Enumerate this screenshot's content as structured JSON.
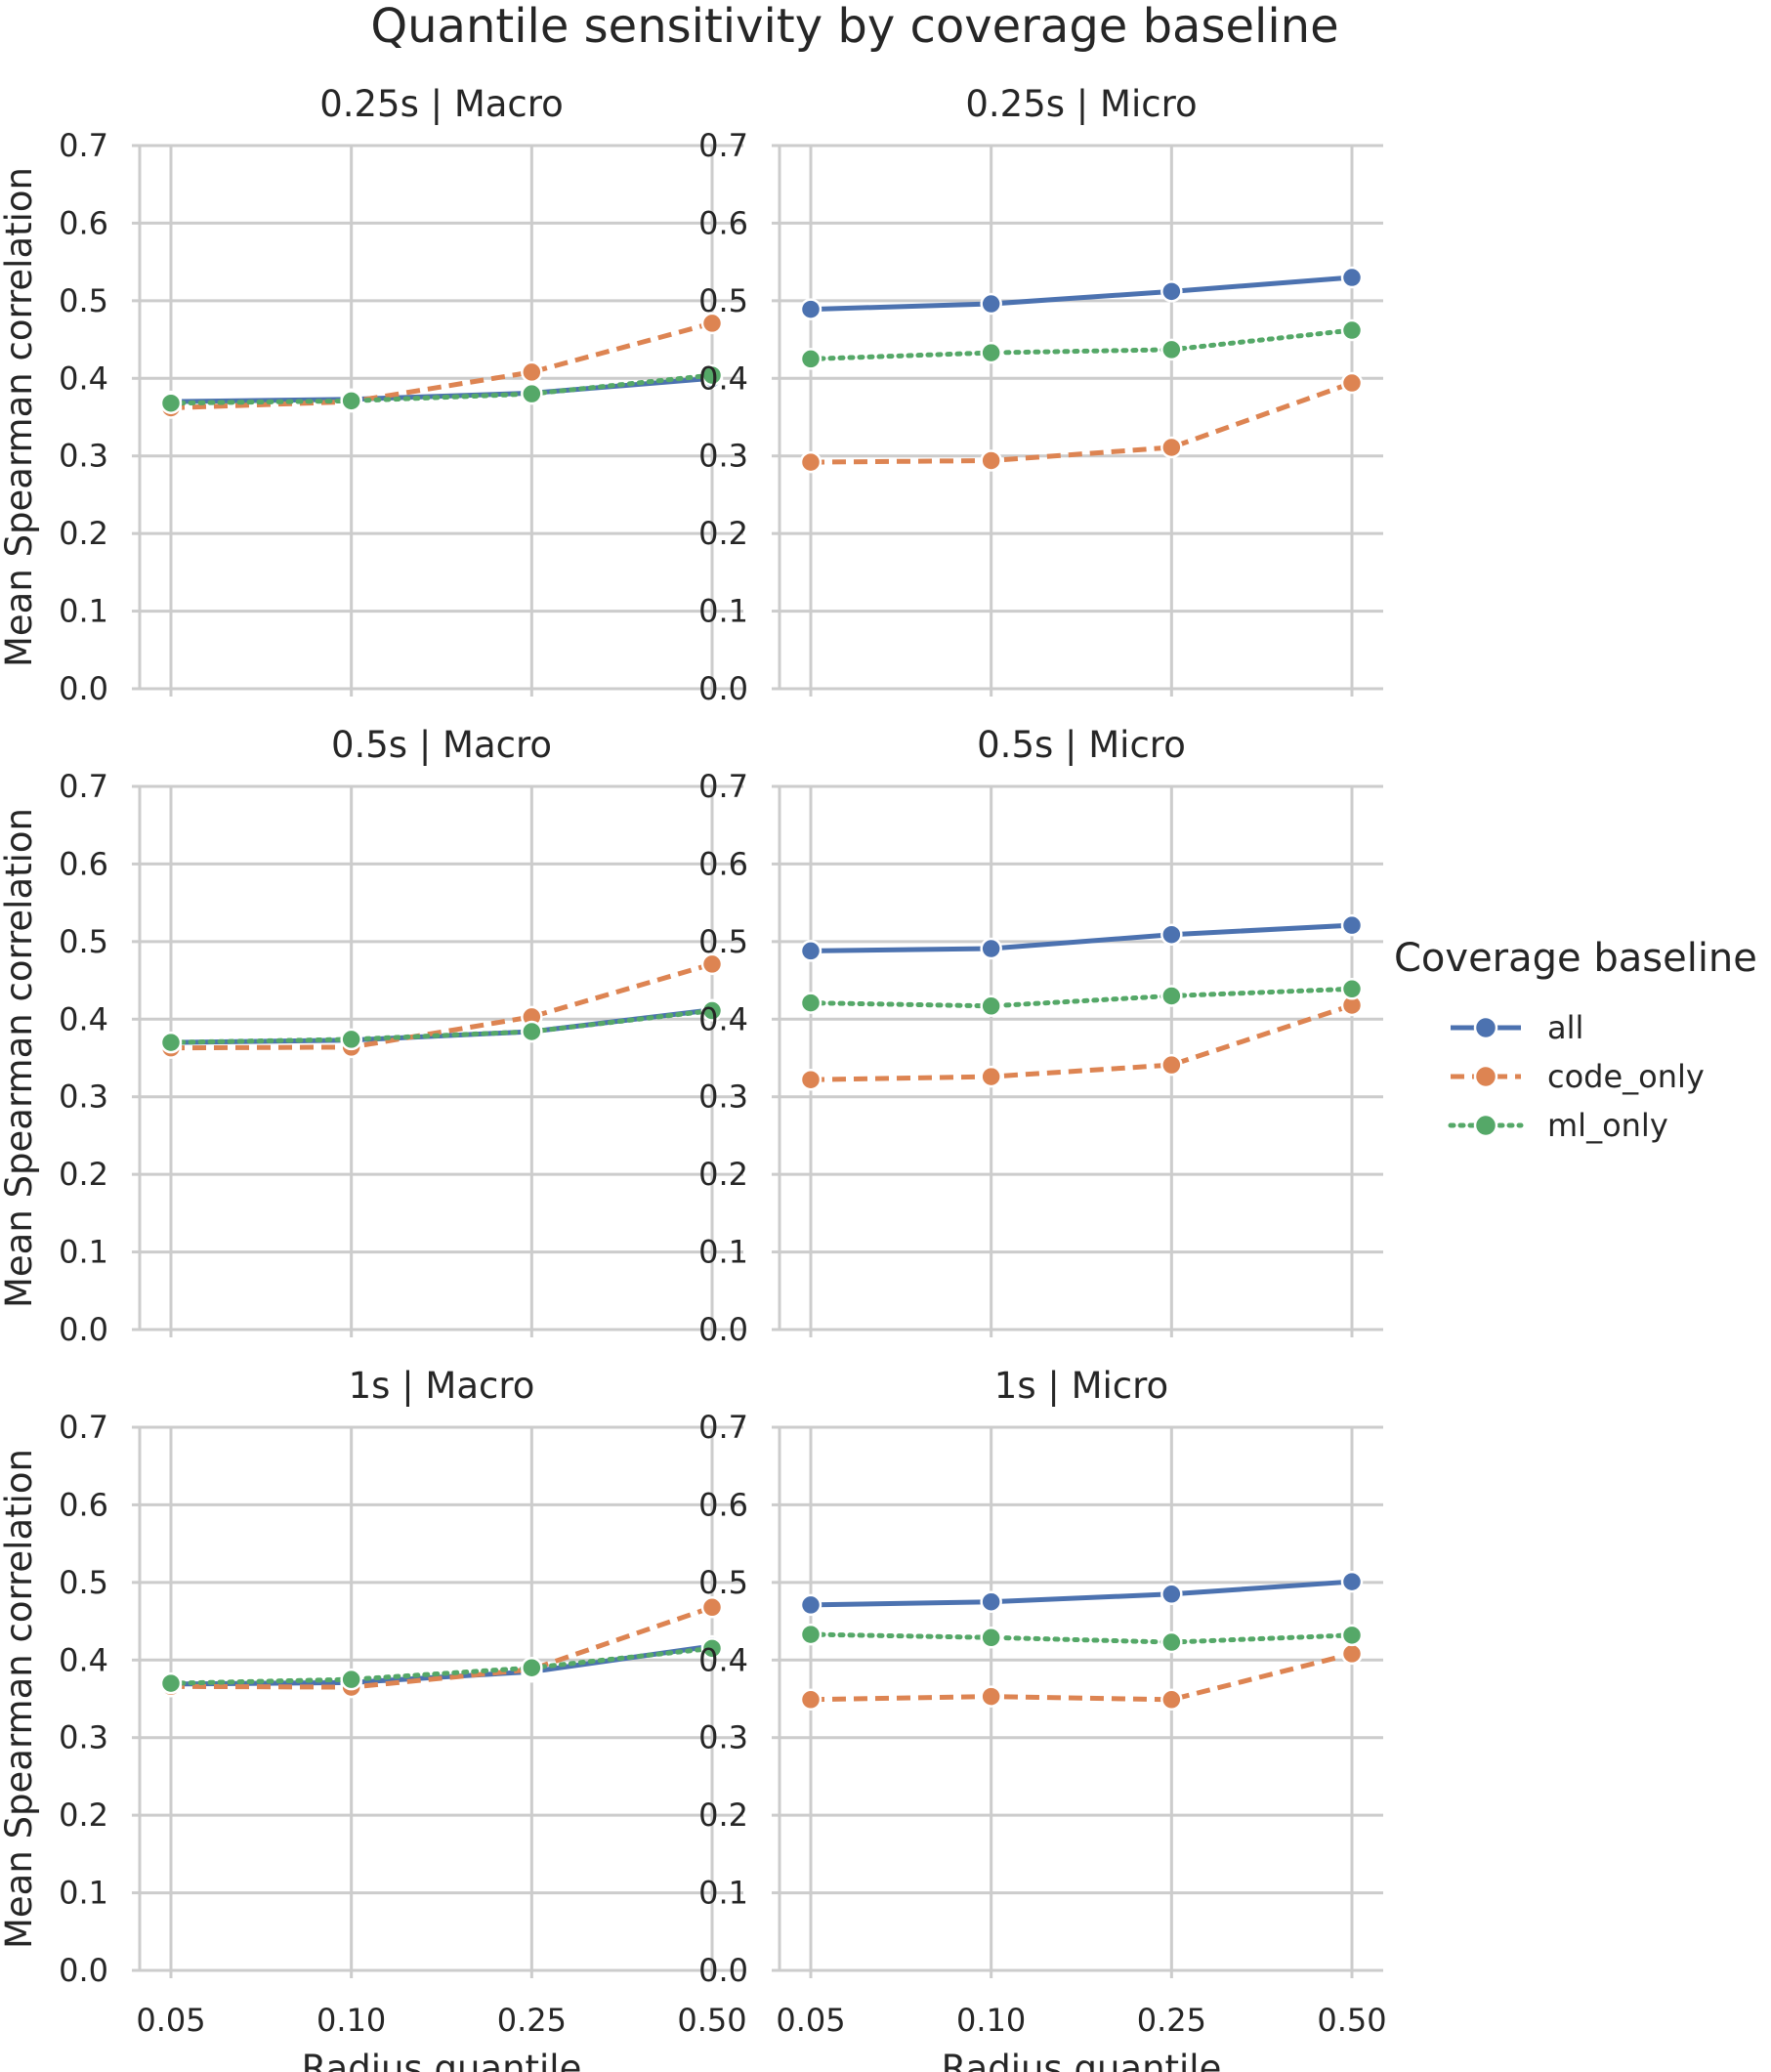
{
  "chart_data": {
    "type": "line",
    "title": "Quantile sensitivity by coverage baseline",
    "xlabel": "Radius quantile",
    "ylabel": "Mean Spearman correlation",
    "categories": [
      "0.05",
      "0.10",
      "0.25",
      "0.50"
    ],
    "yticks": [
      "0.0",
      "0.1",
      "0.2",
      "0.3",
      "0.4",
      "0.5",
      "0.6",
      "0.7"
    ],
    "ylim": [
      0,
      0.7
    ],
    "grid": true,
    "legend": {
      "title": "Coverage baseline",
      "placement": "right",
      "entries": [
        {
          "name": "all",
          "color": "#4c72b0",
          "dash": "solid"
        },
        {
          "name": "code_only",
          "color": "#dd8452",
          "dash": "dashed"
        },
        {
          "name": "ml_only",
          "color": "#55a868",
          "dash": "dotted"
        }
      ]
    },
    "panels": [
      {
        "title": "0.25s | Macro",
        "series": [
          {
            "name": "all",
            "values": [
              0.37,
              0.373,
              0.381,
              0.4
            ]
          },
          {
            "name": "code_only",
            "values": [
              0.362,
              0.37,
              0.408,
              0.471
            ]
          },
          {
            "name": "ml_only",
            "values": [
              0.368,
              0.371,
              0.38,
              0.404
            ]
          }
        ]
      },
      {
        "title": "0.25s | Micro",
        "series": [
          {
            "name": "all",
            "values": [
              0.489,
              0.496,
              0.512,
              0.53
            ]
          },
          {
            "name": "code_only",
            "values": [
              0.292,
              0.294,
              0.311,
              0.394
            ]
          },
          {
            "name": "ml_only",
            "values": [
              0.425,
              0.433,
              0.437,
              0.462
            ]
          }
        ]
      },
      {
        "title": "0.5s | Macro",
        "series": [
          {
            "name": "all",
            "values": [
              0.37,
              0.373,
              0.384,
              0.412
            ]
          },
          {
            "name": "code_only",
            "values": [
              0.363,
              0.364,
              0.403,
              0.471
            ]
          },
          {
            "name": "ml_only",
            "values": [
              0.37,
              0.374,
              0.384,
              0.411
            ]
          }
        ]
      },
      {
        "title": "0.5s | Micro",
        "series": [
          {
            "name": "all",
            "values": [
              0.488,
              0.491,
              0.509,
              0.521
            ]
          },
          {
            "name": "code_only",
            "values": [
              0.322,
              0.326,
              0.341,
              0.418
            ]
          },
          {
            "name": "ml_only",
            "values": [
              0.421,
              0.417,
              0.43,
              0.439
            ]
          }
        ]
      },
      {
        "title": "1s | Macro",
        "series": [
          {
            "name": "all",
            "values": [
              0.369,
              0.371,
              0.385,
              0.418
            ]
          },
          {
            "name": "code_only",
            "values": [
              0.366,
              0.365,
              0.388,
              0.468
            ]
          },
          {
            "name": "ml_only",
            "values": [
              0.37,
              0.375,
              0.39,
              0.415
            ]
          }
        ]
      },
      {
        "title": "1s | Micro",
        "series": [
          {
            "name": "all",
            "values": [
              0.471,
              0.475,
              0.485,
              0.501
            ]
          },
          {
            "name": "code_only",
            "values": [
              0.349,
              0.353,
              0.349,
              0.408
            ]
          },
          {
            "name": "ml_only",
            "values": [
              0.433,
              0.429,
              0.423,
              0.432
            ]
          }
        ]
      }
    ]
  }
}
